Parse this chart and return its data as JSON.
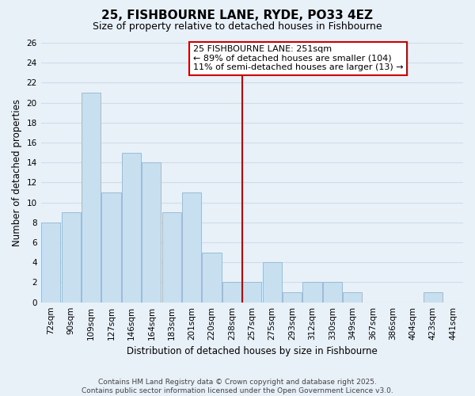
{
  "title": "25, FISHBOURNE LANE, RYDE, PO33 4EZ",
  "subtitle": "Size of property relative to detached houses in Fishbourne",
  "xlabel": "Distribution of detached houses by size in Fishbourne",
  "ylabel": "Number of detached properties",
  "bar_color": "#c8dff0",
  "bar_edge_color": "#9bbcd8",
  "background_color": "#e8f0f8",
  "grid_color": "#d0dce8",
  "bin_labels": [
    "72sqm",
    "90sqm",
    "109sqm",
    "127sqm",
    "146sqm",
    "164sqm",
    "183sqm",
    "201sqm",
    "220sqm",
    "238sqm",
    "257sqm",
    "275sqm",
    "293sqm",
    "312sqm",
    "330sqm",
    "349sqm",
    "367sqm",
    "386sqm",
    "404sqm",
    "423sqm",
    "441sqm"
  ],
  "counts": [
    8,
    9,
    21,
    11,
    15,
    14,
    9,
    11,
    5,
    2,
    2,
    4,
    1,
    2,
    2,
    1,
    0,
    0,
    0,
    1,
    0
  ],
  "vline_index": 10,
  "vline_color": "#cc0000",
  "ylim": [
    0,
    26
  ],
  "yticks": [
    0,
    2,
    4,
    6,
    8,
    10,
    12,
    14,
    16,
    18,
    20,
    22,
    24,
    26
  ],
  "annotation_title": "25 FISHBOURNE LANE: 251sqm",
  "annotation_line1": "← 89% of detached houses are smaller (104)",
  "annotation_line2": "11% of semi-detached houses are larger (13) →",
  "annotation_box_color": "#ffffff",
  "annotation_border_color": "#cc0000",
  "footer_line1": "Contains HM Land Registry data © Crown copyright and database right 2025.",
  "footer_line2": "Contains public sector information licensed under the Open Government Licence v3.0.",
  "title_fontsize": 11,
  "subtitle_fontsize": 9,
  "tick_fontsize": 7.5,
  "ylabel_fontsize": 8.5,
  "xlabel_fontsize": 8.5,
  "annotation_fontsize": 8,
  "footer_fontsize": 6.5
}
